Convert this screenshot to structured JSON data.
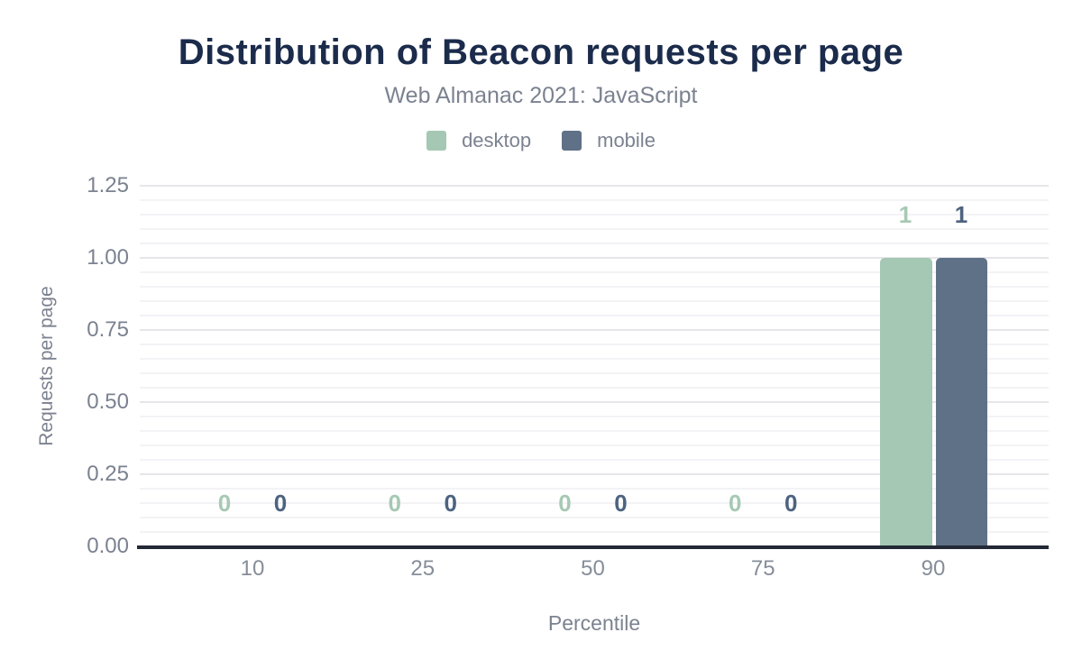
{
  "header": {
    "title": "Distribution of Beacon requests per page",
    "subtitle": "Web Almanac 2021: JavaScript"
  },
  "legend": {
    "items": [
      {
        "label": "desktop",
        "color": "#a4c8b3"
      },
      {
        "label": "mobile",
        "color": "#5f7187"
      }
    ]
  },
  "axes": {
    "y_title": "Requests per page",
    "x_title": "Percentile"
  },
  "colors": {
    "title": "#1b2b4b",
    "muted_text": "#7b8290",
    "xtick_text": "#868d99",
    "grid_major": "#e6e6ea",
    "grid_minor": "#f3f3f6",
    "axis_line": "#232936",
    "desktop_bar": "#a4c8b3",
    "mobile_bar": "#5f7187",
    "desktop_value_label": "#a6c9b4",
    "mobile_value_label": "#4d6380"
  },
  "chart_data": {
    "type": "bar",
    "title": "Distribution of Beacon requests per page",
    "subtitle": "Web Almanac 2021: JavaScript",
    "categories": [
      "10",
      "25",
      "50",
      "75",
      "90"
    ],
    "series": [
      {
        "name": "desktop",
        "color": "#a4c8b3",
        "label_color": "#a6c9b4",
        "values": [
          0,
          0,
          0,
          0,
          1
        ]
      },
      {
        "name": "mobile",
        "color": "#5f7187",
        "label_color": "#4d6380",
        "values": [
          0,
          0,
          0,
          0,
          1
        ]
      }
    ],
    "xlabel": "Percentile",
    "ylabel": "Requests per page",
    "ylim": [
      0,
      1.25
    ],
    "yticks": [
      0,
      0.25,
      0.5,
      0.75,
      1,
      1.25
    ],
    "ytick_labels": [
      "0.00",
      "0.25",
      "0.50",
      "0.75",
      "1.00",
      "1.25"
    ],
    "minor_grid_step": 0.05,
    "grid": true,
    "legend_position": "top",
    "value_labels": true
  }
}
